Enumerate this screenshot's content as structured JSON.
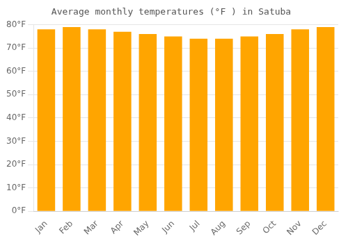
{
  "chart_data": {
    "type": "bar",
    "title": "Average monthly temperatures (°F ) in Satuba",
    "categories": [
      "Jan",
      "Feb",
      "Mar",
      "Apr",
      "May",
      "Jun",
      "Jul",
      "Aug",
      "Sep",
      "Oct",
      "Nov",
      "Dec"
    ],
    "values": [
      78,
      79,
      78,
      77,
      76,
      75,
      74,
      74,
      75,
      76,
      78,
      79
    ],
    "color": "#FFA500",
    "ylim": [
      0,
      80
    ],
    "yticks": [
      {
        "value": 0,
        "label": "0°F"
      },
      {
        "value": 10,
        "label": "10°F"
      },
      {
        "value": 20,
        "label": "20°F"
      },
      {
        "value": 30,
        "label": "30°F"
      },
      {
        "value": 40,
        "label": "40°F"
      },
      {
        "value": 50,
        "label": "50°F"
      },
      {
        "value": 60,
        "label": "60°F"
      },
      {
        "value": 70,
        "label": "70°F"
      },
      {
        "value": 80,
        "label": "80°F"
      }
    ],
    "grid": true
  }
}
